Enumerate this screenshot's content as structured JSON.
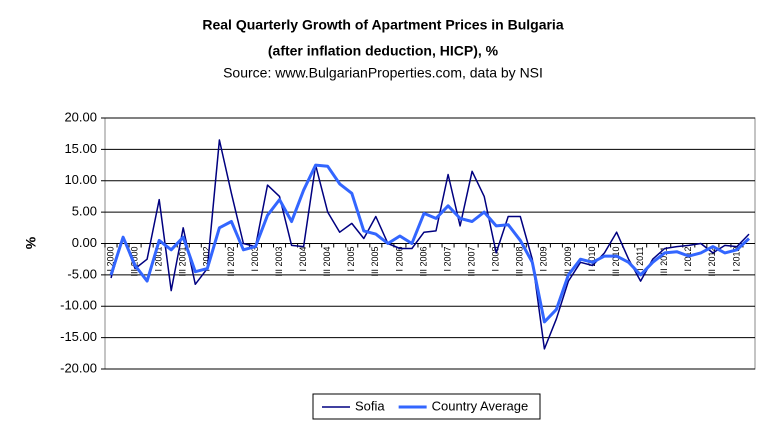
{
  "chart_data": {
    "type": "line",
    "title": "Real Quarterly Growth of Apartment Prices in Bulgaria",
    "subtitle": "(after inflation deduction, HICP), %",
    "source": "Source: www.BulgarianProperties.com, data by NSI",
    "y_label": "%",
    "categories": [
      "I 2000",
      null,
      "III 2000",
      null,
      "I 2001",
      null,
      "III 2001",
      null,
      "I 2002",
      null,
      "III 2002",
      null,
      "I 2003",
      null,
      "III 2003",
      null,
      "I 2004",
      null,
      "III 2004",
      null,
      "I 2005",
      null,
      "III 2005",
      null,
      "I 2006",
      null,
      "III 2006",
      null,
      "I 2007",
      null,
      "III 2007",
      null,
      "I 2008",
      null,
      "III 2008",
      null,
      "I 2009",
      null,
      "III 2009",
      null,
      "I 2010",
      null,
      "III 2010",
      null,
      "I 2011",
      null,
      "III 2011",
      null,
      "I 2012",
      null,
      "III 2012",
      null,
      "I 2013",
      null
    ],
    "series": [
      {
        "name": "Sofia",
        "color": "#000080",
        "values": [
          -5.5,
          1,
          -4,
          -2.5,
          7,
          -7.5,
          2.5,
          -6.5,
          -4,
          16.5,
          8,
          0,
          -0.5,
          9.3,
          7.5,
          -0.3,
          -0.5,
          12.5,
          5,
          1.8,
          3.2,
          0.8,
          4.3,
          0,
          -0.8,
          -0.8,
          1.8,
          2,
          11,
          2.8,
          11.5,
          7.5,
          -1.5,
          4.3,
          4.3,
          -2.5,
          -16.8,
          -12,
          -6,
          -3,
          -3.5,
          -1.5,
          1.8,
          -2.5,
          -6,
          -2.5,
          -0.8,
          -0.5,
          -0.3,
          0,
          -1.5,
          -0.3,
          -0.5,
          1.5
        ]
      },
      {
        "name": "Country Average",
        "color": "#3366ff",
        "values": [
          -5,
          1,
          -3.5,
          -6,
          0.5,
          -1,
          1,
          -4.5,
          -4,
          2.5,
          3.5,
          -1,
          -0.5,
          4.5,
          7,
          3.5,
          8.5,
          12.5,
          12.3,
          9.5,
          8,
          2,
          1.5,
          0,
          1.2,
          0,
          4.8,
          4,
          6,
          4,
          3.5,
          5,
          2.8,
          3,
          0.5,
          -3,
          -12.5,
          -10.5,
          -5,
          -2.5,
          -3,
          -2,
          -2,
          -3,
          -5,
          -3,
          -1.5,
          -1.3,
          -2,
          -1.5,
          -0.5,
          -1.5,
          -1,
          0.8
        ]
      }
    ],
    "ylim": [
      -20,
      20
    ],
    "yticks": [
      {
        "value": -20,
        "label": "-20.00"
      },
      {
        "value": -15,
        "label": "-15.00"
      },
      {
        "value": -10,
        "label": "-10.00"
      },
      {
        "value": -5,
        "label": "-5.00"
      },
      {
        "value": 0,
        "label": "0.00"
      },
      {
        "value": 5,
        "label": "5.00"
      },
      {
        "value": 10,
        "label": "10.00"
      },
      {
        "value": 15,
        "label": "15.00"
      },
      {
        "value": 20,
        "label": "20.00"
      }
    ],
    "grid": true,
    "legend": "bottom"
  }
}
